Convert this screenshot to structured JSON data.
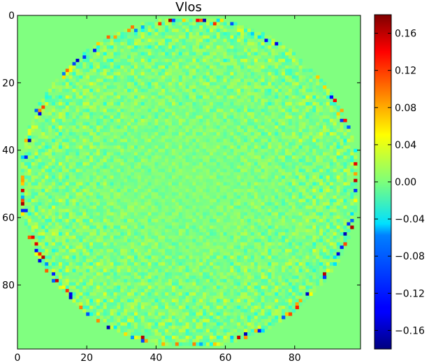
{
  "chart_data": {
    "type": "heatmap",
    "title": "Vlos",
    "xlabel": "",
    "ylabel": "",
    "grid": 100,
    "xlim": [
      0,
      99
    ],
    "ylim": [
      99,
      0
    ],
    "x_ticks": [
      0,
      20,
      40,
      60,
      80
    ],
    "y_ticks": [
      0,
      20,
      40,
      60,
      80
    ],
    "colormap": "jet",
    "vmin": -0.18,
    "vmax": 0.18,
    "colorbar_ticks": [
      0.16,
      0.12,
      0.08,
      0.04,
      0.0,
      -0.04,
      -0.08,
      -0.12,
      -0.16
    ],
    "colorbar_tick_labels": [
      "0.16",
      "0.12",
      "0.08",
      "0.04",
      "0.00",
      "−0.04",
      "−0.08",
      "−0.12",
      "−0.16"
    ],
    "disk": {
      "center": [
        49.5,
        49.5
      ],
      "radius": 49.5
    },
    "outside_disk_value": 0.0,
    "interior_value_range": [
      -0.04,
      0.04
    ],
    "limb_value_range": [
      -0.17,
      0.17
    ]
  }
}
